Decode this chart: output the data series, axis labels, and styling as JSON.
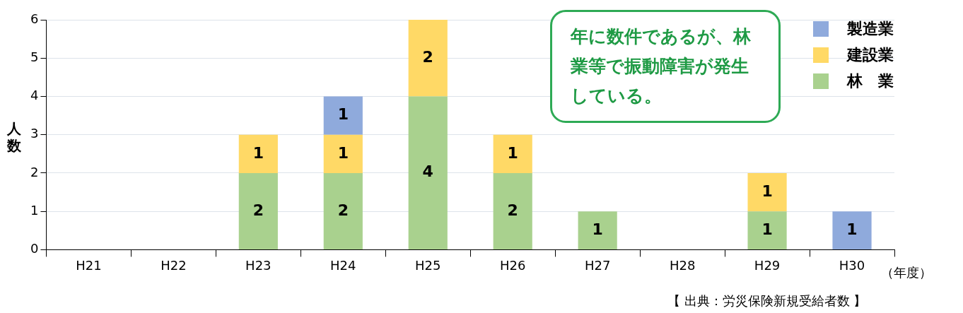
{
  "chart_data": {
    "type": "bar",
    "stacked": true,
    "data_labels": true,
    "grid": "y",
    "legend": "top right",
    "ylabel": "人数",
    "xlabel": "（年度）",
    "categories": [
      "H21",
      "H22",
      "H23",
      "H24",
      "H25",
      "H26",
      "H27",
      "H28",
      "H29",
      "H30"
    ],
    "series": [
      {
        "name": "林　業",
        "color": "#a9d18e",
        "values": [
          null,
          null,
          2,
          2,
          4,
          2,
          1,
          null,
          1,
          null
        ]
      },
      {
        "name": "建設業",
        "color": "#ffd966",
        "values": [
          null,
          null,
          1,
          1,
          2,
          1,
          null,
          null,
          1,
          null
        ]
      },
      {
        "name": "製造業",
        "color": "#8faadc",
        "values": [
          null,
          null,
          null,
          1,
          null,
          null,
          null,
          null,
          null,
          1
        ]
      }
    ],
    "ylim": [
      0,
      6
    ],
    "yticks": [
      0,
      1,
      2,
      3,
      4,
      5,
      6
    ],
    "annotations": [
      "年に数件であるが、林業等で振動障害が発生している。",
      "【 出典：労災保険新規受給者数 】"
    ]
  }
}
